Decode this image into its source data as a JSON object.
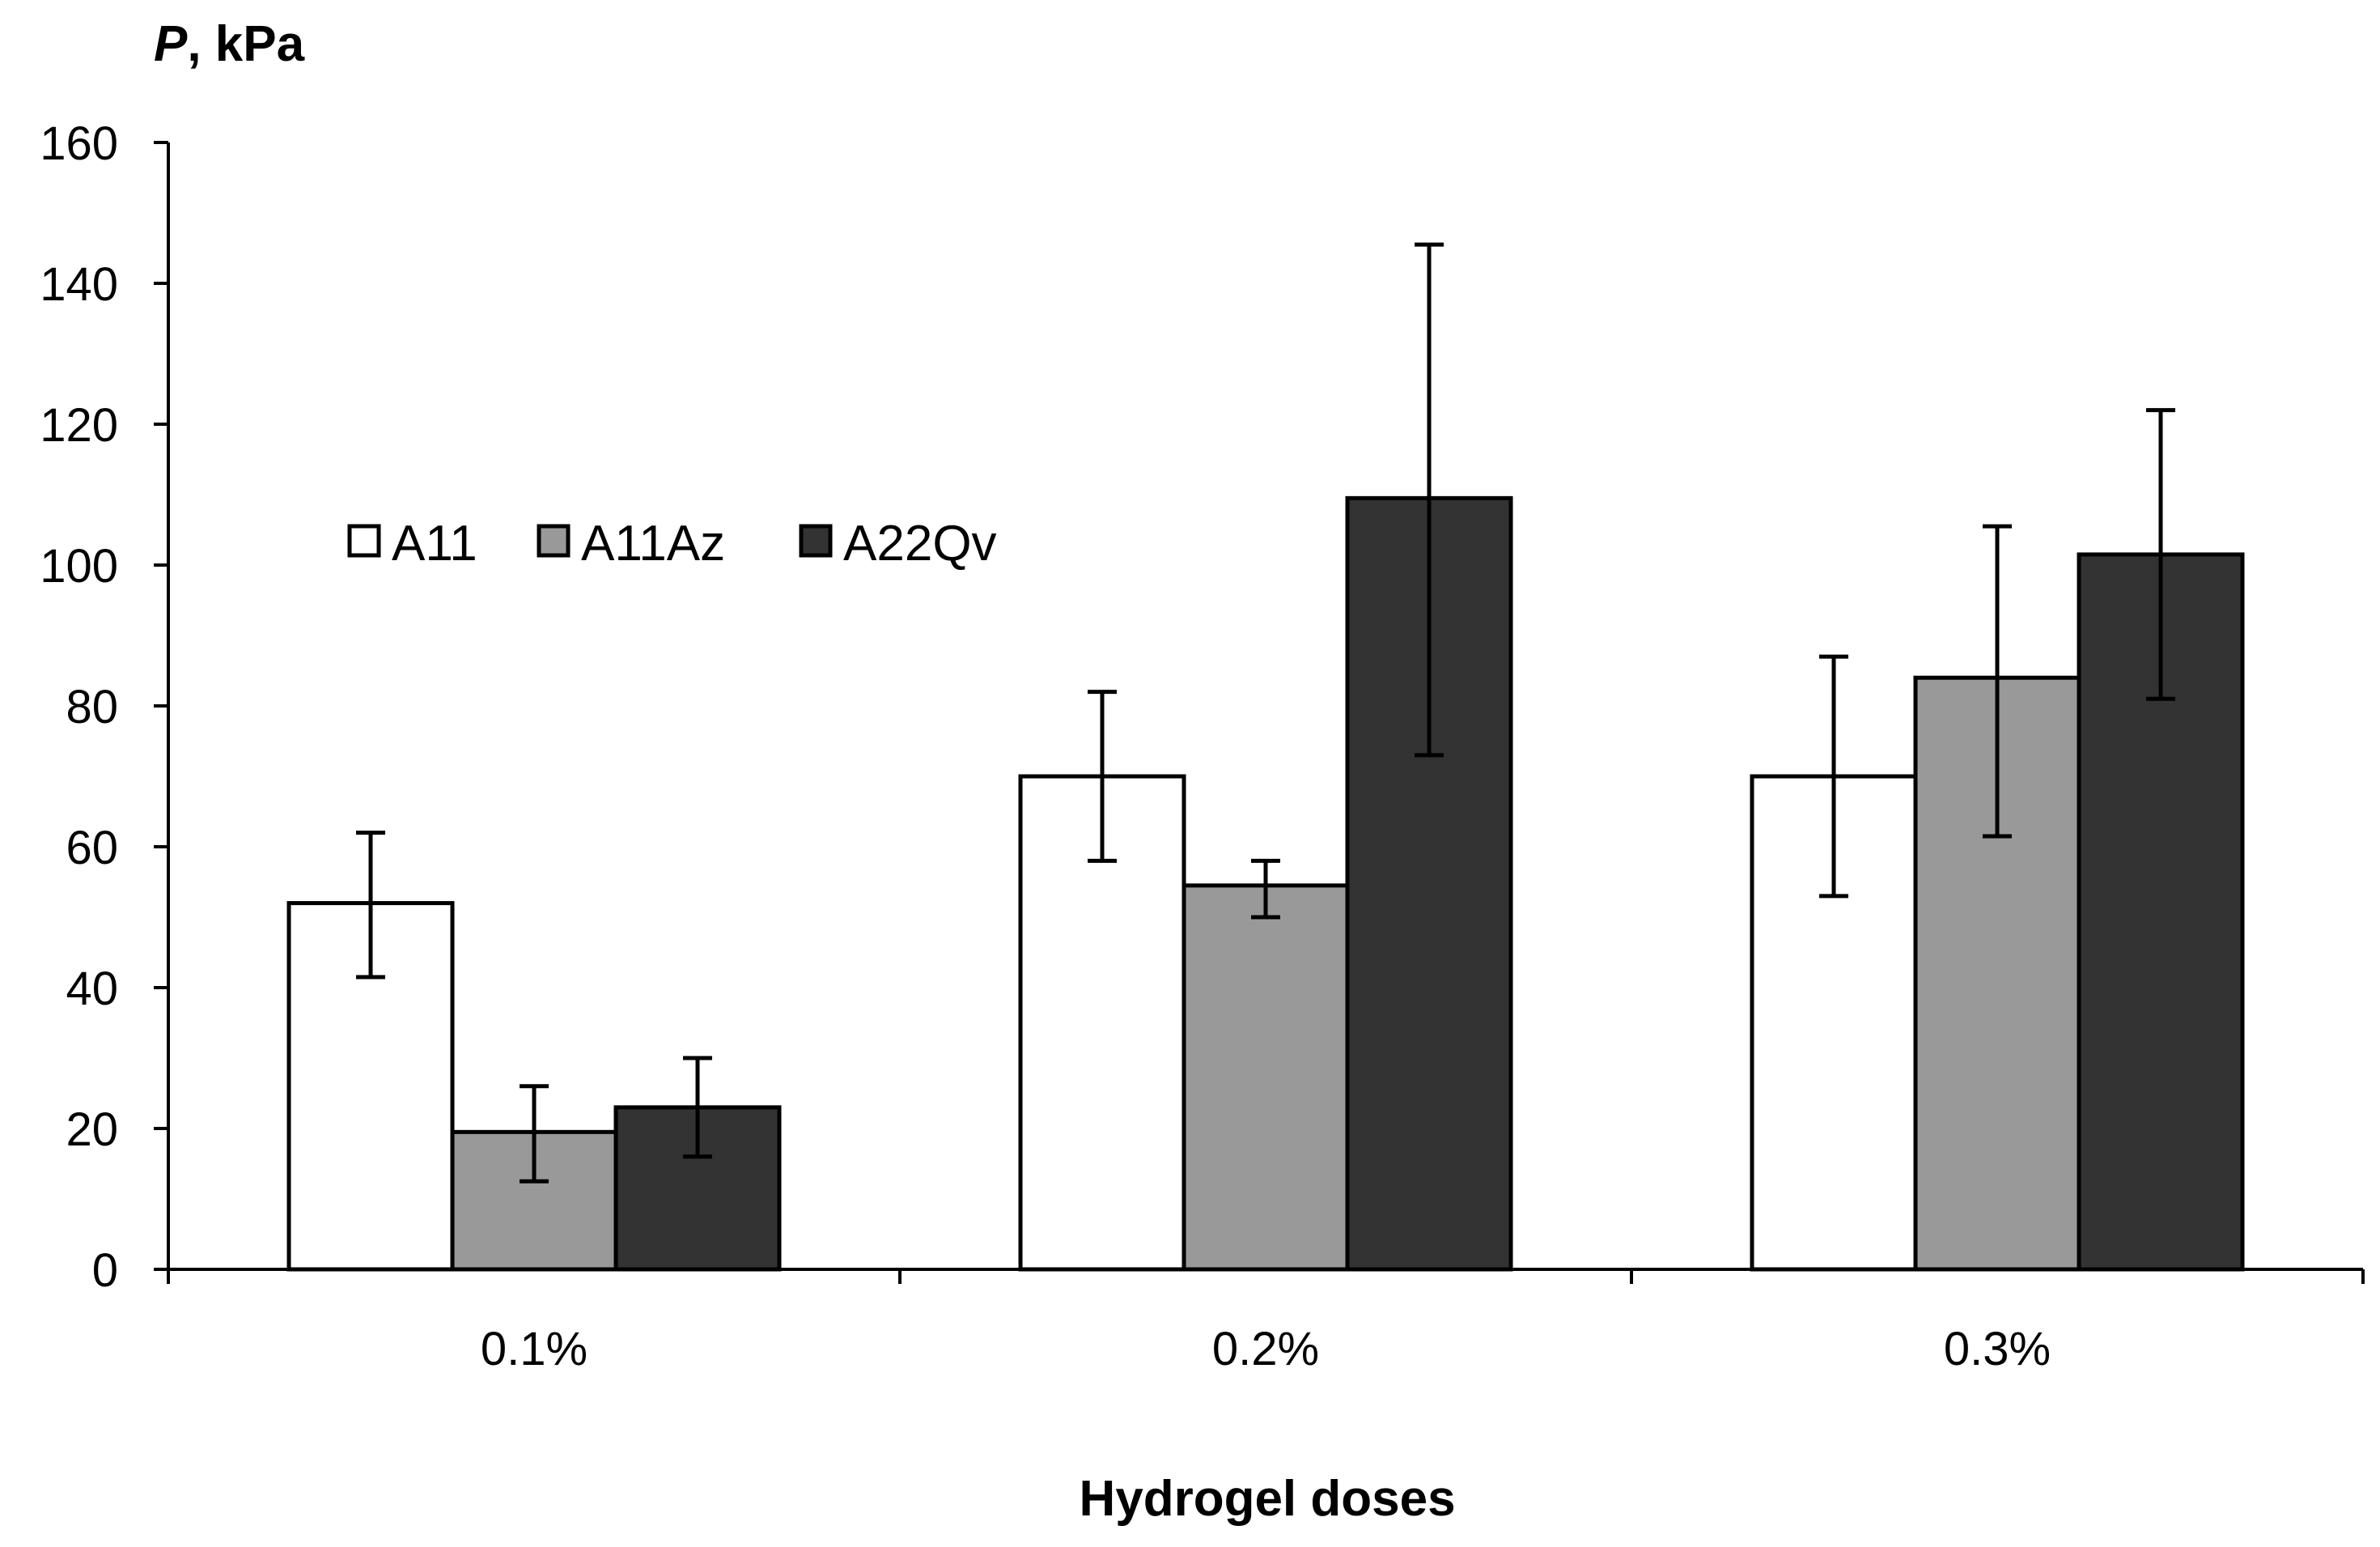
{
  "chart_data": {
    "type": "bar",
    "title": "",
    "xlabel": "Hydrogel doses",
    "ylabel": {
      "symbol": "P",
      "unit": ", kPa"
    },
    "ylim": [
      0,
      160
    ],
    "yticks": [
      0,
      20,
      40,
      60,
      80,
      100,
      120,
      140,
      160
    ],
    "categories": [
      "0.1%",
      "0.2%",
      "0.3%"
    ],
    "grid": false,
    "legend_position": "upper-left",
    "series": [
      {
        "name": "A11",
        "color": "#ffffff",
        "values": [
          52,
          70,
          70
        ],
        "error_low": [
          41.5,
          58,
          53
        ],
        "error_high": [
          62,
          82,
          87
        ]
      },
      {
        "name": "A11Az",
        "color": "#999999",
        "values": [
          19.5,
          54.5,
          84
        ],
        "error_low": [
          12.5,
          50,
          61.5
        ],
        "error_high": [
          26,
          58,
          105.5
        ]
      },
      {
        "name": "A22Qv",
        "color": "#333333",
        "values": [
          23,
          109.5,
          101.5
        ],
        "error_low": [
          16,
          73,
          81
        ],
        "error_high": [
          30,
          145.5,
          122
        ]
      }
    ]
  }
}
